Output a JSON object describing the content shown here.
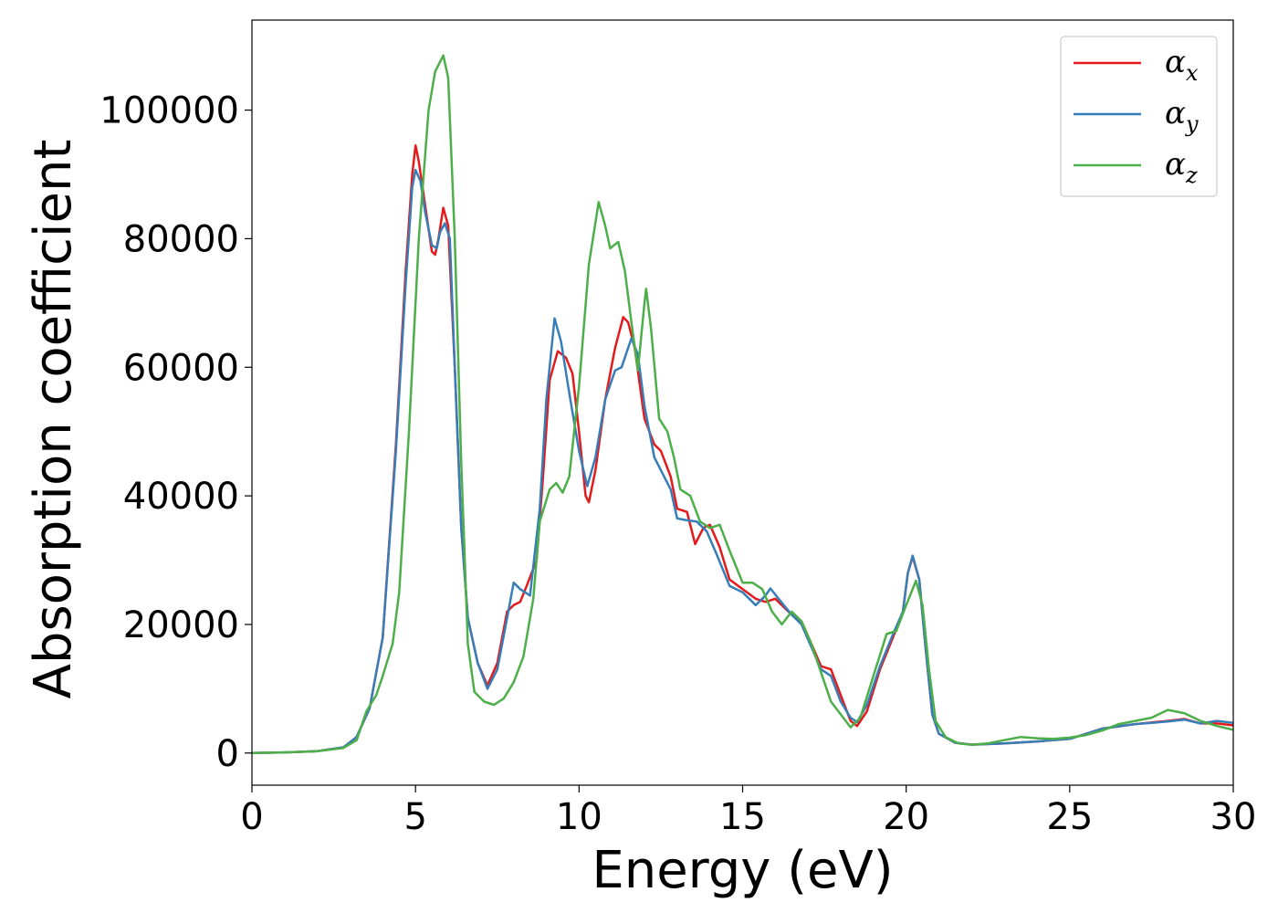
{
  "chart_data": {
    "type": "line",
    "title": "",
    "xlabel": "Energy (eV)",
    "ylabel": "Absorption coefficient",
    "xlim": [
      0,
      30
    ],
    "ylim": [
      -5000,
      114000
    ],
    "xticks": [
      0,
      5,
      10,
      15,
      20,
      25,
      30
    ],
    "yticks": [
      0,
      20000,
      40000,
      60000,
      80000,
      100000
    ],
    "grid": false,
    "legend_position": "top-right",
    "series": [
      {
        "name": "α",
        "subscript": "x",
        "color": "#e41a1c",
        "points": [
          [
            0,
            0
          ],
          [
            1,
            100
          ],
          [
            2,
            300
          ],
          [
            2.8,
            900
          ],
          [
            3.2,
            2500
          ],
          [
            3.6,
            7000
          ],
          [
            4.0,
            18000
          ],
          [
            4.4,
            48000
          ],
          [
            4.7,
            75000
          ],
          [
            4.9,
            90000
          ],
          [
            5.0,
            94500
          ],
          [
            5.1,
            92000
          ],
          [
            5.3,
            85000
          ],
          [
            5.5,
            78000
          ],
          [
            5.6,
            77500
          ],
          [
            5.7,
            80000
          ],
          [
            5.85,
            84800
          ],
          [
            6.0,
            82000
          ],
          [
            6.2,
            60000
          ],
          [
            6.4,
            35000
          ],
          [
            6.6,
            21000
          ],
          [
            6.9,
            14000
          ],
          [
            7.2,
            10500
          ],
          [
            7.5,
            14000
          ],
          [
            7.8,
            22000
          ],
          [
            8.0,
            23000
          ],
          [
            8.2,
            23500
          ],
          [
            8.4,
            26000
          ],
          [
            8.7,
            30000
          ],
          [
            8.9,
            43000
          ],
          [
            9.1,
            58000
          ],
          [
            9.35,
            62500
          ],
          [
            9.6,
            61500
          ],
          [
            9.8,
            59000
          ],
          [
            10.0,
            50000
          ],
          [
            10.2,
            40000
          ],
          [
            10.3,
            39000
          ],
          [
            10.5,
            44000
          ],
          [
            10.8,
            55000
          ],
          [
            11.1,
            63000
          ],
          [
            11.35,
            67800
          ],
          [
            11.5,
            67000
          ],
          [
            11.7,
            63000
          ],
          [
            12.0,
            52000
          ],
          [
            12.3,
            48000
          ],
          [
            12.5,
            47000
          ],
          [
            12.8,
            43000
          ],
          [
            13.0,
            38000
          ],
          [
            13.3,
            37500
          ],
          [
            13.55,
            32500
          ],
          [
            13.8,
            35000
          ],
          [
            14.0,
            35500
          ],
          [
            14.3,
            32000
          ],
          [
            14.6,
            27000
          ],
          [
            15.0,
            25500
          ],
          [
            15.4,
            24000
          ],
          [
            15.7,
            23500
          ],
          [
            16.0,
            24000
          ],
          [
            16.2,
            23000
          ],
          [
            16.5,
            21500
          ],
          [
            16.8,
            20500
          ],
          [
            17.1,
            17000
          ],
          [
            17.4,
            13500
          ],
          [
            17.7,
            13000
          ],
          [
            18.0,
            9000
          ],
          [
            18.3,
            5000
          ],
          [
            18.5,
            4200
          ],
          [
            18.8,
            6500
          ],
          [
            19.2,
            13000
          ],
          [
            19.6,
            18000
          ],
          [
            19.9,
            22000
          ],
          [
            20.05,
            28000
          ],
          [
            20.2,
            30500
          ],
          [
            20.4,
            27000
          ],
          [
            20.6,
            16000
          ],
          [
            20.8,
            6000
          ],
          [
            21.0,
            3000
          ],
          [
            21.5,
            1600
          ],
          [
            22,
            1300
          ],
          [
            23,
            1500
          ],
          [
            24,
            1800
          ],
          [
            25,
            2200
          ],
          [
            25.5,
            3000
          ],
          [
            26,
            3800
          ],
          [
            27,
            4500
          ],
          [
            28,
            5000
          ],
          [
            28.5,
            5300
          ],
          [
            29,
            4600
          ],
          [
            29.5,
            4600
          ],
          [
            30,
            4300
          ]
        ]
      },
      {
        "name": "α",
        "subscript": "y",
        "color": "#377eb8",
        "points": [
          [
            0,
            0
          ],
          [
            1,
            100
          ],
          [
            2,
            300
          ],
          [
            2.8,
            900
          ],
          [
            3.2,
            2500
          ],
          [
            3.6,
            7000
          ],
          [
            4.0,
            18000
          ],
          [
            4.4,
            47000
          ],
          [
            4.7,
            73000
          ],
          [
            4.9,
            88000
          ],
          [
            5.0,
            90700
          ],
          [
            5.15,
            89000
          ],
          [
            5.3,
            84000
          ],
          [
            5.5,
            79000
          ],
          [
            5.65,
            78500
          ],
          [
            5.75,
            81000
          ],
          [
            5.9,
            82400
          ],
          [
            6.05,
            80000
          ],
          [
            6.2,
            60000
          ],
          [
            6.4,
            35000
          ],
          [
            6.6,
            21000
          ],
          [
            6.9,
            14000
          ],
          [
            7.2,
            10000
          ],
          [
            7.5,
            13000
          ],
          [
            7.8,
            21000
          ],
          [
            8.0,
            26500
          ],
          [
            8.2,
            25500
          ],
          [
            8.5,
            24500
          ],
          [
            8.8,
            38000
          ],
          [
            9.0,
            55000
          ],
          [
            9.25,
            67600
          ],
          [
            9.45,
            64000
          ],
          [
            9.7,
            56000
          ],
          [
            10.0,
            47000
          ],
          [
            10.25,
            41500
          ],
          [
            10.5,
            46000
          ],
          [
            10.8,
            55000
          ],
          [
            11.1,
            59500
          ],
          [
            11.3,
            60000
          ],
          [
            11.6,
            64500
          ],
          [
            11.8,
            62000
          ],
          [
            12.0,
            54000
          ],
          [
            12.3,
            46000
          ],
          [
            12.5,
            44000
          ],
          [
            12.8,
            41000
          ],
          [
            13.0,
            36500
          ],
          [
            13.3,
            36200
          ],
          [
            13.6,
            36000
          ],
          [
            13.9,
            34500
          ],
          [
            14.2,
            31000
          ],
          [
            14.6,
            26000
          ],
          [
            15.0,
            25000
          ],
          [
            15.4,
            23000
          ],
          [
            15.7,
            24500
          ],
          [
            15.85,
            25600
          ],
          [
            16.1,
            24000
          ],
          [
            16.5,
            21500
          ],
          [
            16.8,
            20000
          ],
          [
            17.1,
            16500
          ],
          [
            17.4,
            13000
          ],
          [
            17.7,
            12000
          ],
          [
            18.0,
            8000
          ],
          [
            18.3,
            5500
          ],
          [
            18.5,
            4800
          ],
          [
            18.8,
            7500
          ],
          [
            19.2,
            13500
          ],
          [
            19.6,
            18500
          ],
          [
            19.9,
            22000
          ],
          [
            20.05,
            28000
          ],
          [
            20.2,
            30700
          ],
          [
            20.4,
            27000
          ],
          [
            20.6,
            16000
          ],
          [
            20.8,
            6000
          ],
          [
            21.0,
            3000
          ],
          [
            21.5,
            1600
          ],
          [
            22,
            1300
          ],
          [
            23,
            1500
          ],
          [
            24,
            1800
          ],
          [
            25,
            2200
          ],
          [
            25.5,
            3000
          ],
          [
            26,
            3800
          ],
          [
            27,
            4500
          ],
          [
            28,
            4900
          ],
          [
            28.5,
            5200
          ],
          [
            29,
            4600
          ],
          [
            29.5,
            5000
          ],
          [
            30,
            4700
          ]
        ]
      },
      {
        "name": "α",
        "subscript": "z",
        "color": "#4daf4a",
        "points": [
          [
            0,
            0
          ],
          [
            1,
            100
          ],
          [
            2,
            300
          ],
          [
            2.8,
            800
          ],
          [
            3.2,
            2000
          ],
          [
            3.5,
            6500
          ],
          [
            3.8,
            9000
          ],
          [
            4.0,
            12000
          ],
          [
            4.3,
            17000
          ],
          [
            4.5,
            25000
          ],
          [
            4.8,
            50000
          ],
          [
            5.1,
            80000
          ],
          [
            5.4,
            100000
          ],
          [
            5.6,
            106000
          ],
          [
            5.85,
            108500
          ],
          [
            6.0,
            105000
          ],
          [
            6.2,
            80000
          ],
          [
            6.4,
            45000
          ],
          [
            6.6,
            17000
          ],
          [
            6.8,
            9500
          ],
          [
            7.1,
            8000
          ],
          [
            7.4,
            7500
          ],
          [
            7.7,
            8500
          ],
          [
            8.0,
            11000
          ],
          [
            8.3,
            15000
          ],
          [
            8.6,
            24000
          ],
          [
            8.8,
            36000
          ],
          [
            9.1,
            41000
          ],
          [
            9.3,
            42000
          ],
          [
            9.5,
            40500
          ],
          [
            9.7,
            43000
          ],
          [
            10.0,
            57000
          ],
          [
            10.3,
            76000
          ],
          [
            10.6,
            85700
          ],
          [
            10.8,
            82000
          ],
          [
            10.95,
            78500
          ],
          [
            11.2,
            79500
          ],
          [
            11.4,
            75000
          ],
          [
            11.6,
            67000
          ],
          [
            11.8,
            59500
          ],
          [
            12.0,
            70000
          ],
          [
            12.05,
            72200
          ],
          [
            12.2,
            66000
          ],
          [
            12.45,
            52000
          ],
          [
            12.7,
            50000
          ],
          [
            12.9,
            46000
          ],
          [
            13.1,
            41000
          ],
          [
            13.4,
            40000
          ],
          [
            13.7,
            36000
          ],
          [
            14.0,
            35000
          ],
          [
            14.3,
            35500
          ],
          [
            14.6,
            31500
          ],
          [
            15.0,
            26500
          ],
          [
            15.3,
            26500
          ],
          [
            15.6,
            25500
          ],
          [
            15.9,
            22000
          ],
          [
            16.2,
            20000
          ],
          [
            16.5,
            22000
          ],
          [
            16.8,
            20500
          ],
          [
            17.1,
            17000
          ],
          [
            17.4,
            12500
          ],
          [
            17.7,
            8000
          ],
          [
            18.0,
            6000
          ],
          [
            18.3,
            4000
          ],
          [
            18.6,
            5500
          ],
          [
            19.0,
            12000
          ],
          [
            19.4,
            18500
          ],
          [
            19.7,
            19000
          ],
          [
            20.0,
            23000
          ],
          [
            20.3,
            26800
          ],
          [
            20.5,
            23000
          ],
          [
            20.7,
            13000
          ],
          [
            20.9,
            5000
          ],
          [
            21.2,
            2500
          ],
          [
            21.6,
            1500
          ],
          [
            22,
            1300
          ],
          [
            22.5,
            1500
          ],
          [
            23,
            2000
          ],
          [
            23.5,
            2500
          ],
          [
            24,
            2300
          ],
          [
            24.5,
            2200
          ],
          [
            25,
            2400
          ],
          [
            25.5,
            2800
          ],
          [
            26,
            3500
          ],
          [
            26.5,
            4500
          ],
          [
            27,
            5000
          ],
          [
            27.5,
            5500
          ],
          [
            28,
            6700
          ],
          [
            28.5,
            6200
          ],
          [
            29,
            5000
          ],
          [
            29.5,
            4200
          ],
          [
            30,
            3600
          ]
        ]
      }
    ]
  }
}
